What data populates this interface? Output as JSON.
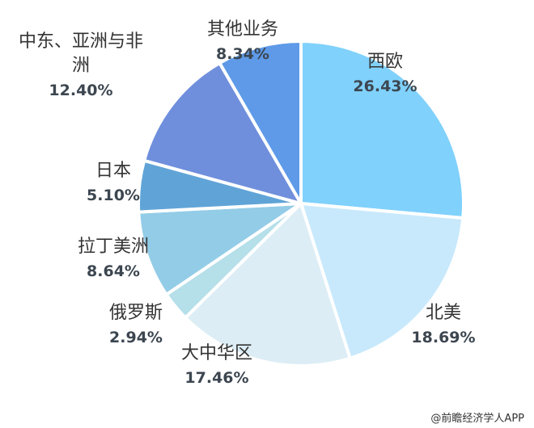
{
  "chart_data": {
    "type": "pie",
    "categories": [
      "西欧",
      "北美",
      "大中华区",
      "俄罗斯",
      "拉丁美洲",
      "日本",
      "中东、亚洲与非洲",
      "其他业务"
    ],
    "values": [
      26.43,
      18.69,
      17.46,
      2.94,
      8.64,
      5.1,
      12.4,
      8.34
    ],
    "value_labels": [
      "26.43%",
      "18.69%",
      "17.46%",
      "2.94%",
      "8.64%",
      "5.10%",
      "12.40%",
      "8.34%"
    ],
    "colors": [
      "#80d1fc",
      "#c8e9fb",
      "#dcedf5",
      "#b5dfe9",
      "#93cce7",
      "#60a4d7",
      "#6f8fdc",
      "#5e9ae8"
    ],
    "source": "@前瞻经济学人APP"
  }
}
